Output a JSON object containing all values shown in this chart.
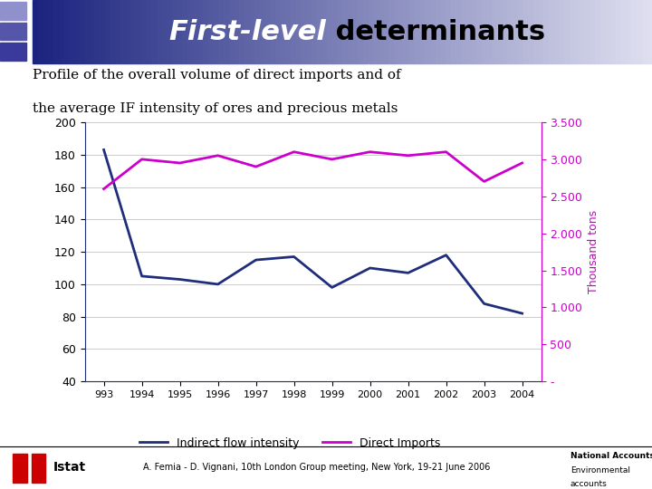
{
  "title_part1": "First-level",
  "title_part2": " determinants",
  "subtitle_line1": "Profile of the overall volume of direct imports and of",
  "subtitle_line2": "the average IF intensity of ores and precious metals",
  "years": [
    1993,
    1994,
    1995,
    1996,
    1997,
    1998,
    1999,
    2000,
    2001,
    2002,
    2003,
    2004
  ],
  "indirect_flow": [
    183,
    105,
    103,
    100,
    115,
    117,
    98,
    110,
    107,
    118,
    88,
    82
  ],
  "direct_imports": [
    2600,
    3000,
    2950,
    3050,
    2900,
    3100,
    3000,
    3100,
    3050,
    3100,
    2700,
    2950
  ],
  "left_ylim": [
    40,
    200
  ],
  "left_yticks": [
    40,
    60,
    80,
    100,
    120,
    140,
    160,
    180,
    200
  ],
  "right_ylim": [
    0,
    3500
  ],
  "right_ytick_labels": [
    "3.500",
    "3.000",
    "2.500",
    "2.000",
    "1.500",
    "1.000",
    "500",
    "-"
  ],
  "right_ytick_vals": [
    3500,
    3000,
    2500,
    2000,
    1500,
    1000,
    500,
    0
  ],
  "indirect_color": "#1f2d7b",
  "direct_color": "#cc00cc",
  "footer_text": "A. Femia - D. Vignani, 10th London Group meeting, New York, 19-21 June 2006",
  "right_ylabel": "Thousand tons",
  "legend_indirect": "Indirect flow intensity",
  "legend_direct": "Direct Imports"
}
